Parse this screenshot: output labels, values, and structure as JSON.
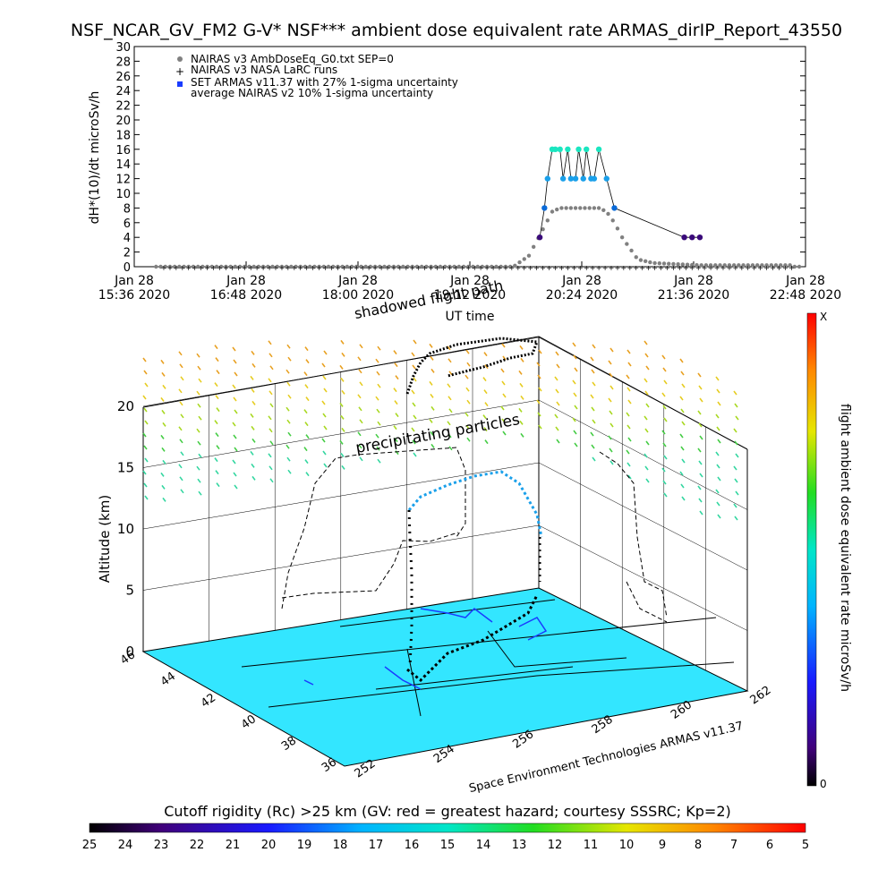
{
  "title": "NSF_NCAR_GV_FM2 G-V* NSF*** ambient dose equivalent rate ARMAS_dirIP_Report_43550",
  "colors": {
    "nairas_amb": "#808080",
    "nasa_larc": "#000000",
    "armas_low": "#3a0a7a",
    "armas_mid": "#0a6ad8",
    "armas_mid2": "#1aa0ea",
    "armas_high": "#1ae6c0",
    "map_surface": "#33e6ff",
    "coast": "#1a3cff"
  },
  "chart_data": [
    {
      "type": "scatter",
      "ylabel": "dH*(10)/dt microSv/h",
      "xlabel": "UT time",
      "ylim": [
        0,
        30
      ],
      "xlim_minutes": [
        936,
        1368
      ],
      "y_ticks": [
        "0",
        "2",
        "4",
        "6",
        "8",
        "10",
        "12",
        "14",
        "16",
        "18",
        "20",
        "22",
        "24",
        "26",
        "28",
        "30"
      ],
      "x_ticks": [
        {
          "m": 936,
          "l1": "Jan 28",
          "l2": "15:36 2020"
        },
        {
          "m": 1008,
          "l1": "Jan 28",
          "l2": "16:48 2020"
        },
        {
          "m": 1080,
          "l1": "Jan 28",
          "l2": "18:00 2020"
        },
        {
          "m": 1152,
          "l1": "Jan 28",
          "l2": "19:12 2020"
        },
        {
          "m": 1224,
          "l1": "Jan 28",
          "l2": "20:24 2020"
        },
        {
          "m": 1296,
          "l1": "Jan 28",
          "l2": "21:36 2020"
        },
        {
          "m": 1368,
          "l1": "Jan 28",
          "l2": "22:48 2020"
        }
      ],
      "legend": [
        "NAIRAS v3 AmbDoseEq_G0.txt SEP=0",
        "NAIRAS v3 NASA LaRC runs",
        "SET ARMAS v11.37 with 27% 1-sigma uncertainty",
        "average NAIRAS v2 10% 1-sigma uncertainty"
      ],
      "series": [
        {
          "name": "NAIRAS v3 AmbDoseEq_G0.txt SEP=0",
          "x": [
            950,
            1000,
            1050,
            1100,
            1150,
            1180,
            1190,
            1195,
            1200,
            1205,
            1210,
            1215,
            1220,
            1225,
            1230,
            1235,
            1240,
            1245,
            1250,
            1260,
            1270,
            1280,
            1290,
            1300,
            1310,
            1320,
            1330,
            1340,
            1350,
            1360
          ],
          "y": [
            0,
            0,
            0,
            0,
            0,
            0,
            1.5,
            3.5,
            5.5,
            7.5,
            8,
            8,
            8,
            8,
            8,
            8,
            7.5,
            6,
            4,
            1,
            0.5,
            0.4,
            0.3,
            0.2,
            0.2,
            0.2,
            0.2,
            0.2,
            0.2,
            0.2
          ]
        },
        {
          "name": "NAIRAS v3 NASA LaRC runs",
          "x": [
            950,
            1000,
            1050,
            1100,
            1150,
            1200,
            1250,
            1300,
            1350,
            1360
          ],
          "y": [
            0,
            0,
            0,
            0,
            0,
            0,
            0,
            0,
            0,
            0
          ]
        },
        {
          "name": "SET ARMAS v11.37 with 27% 1-sigma uncertainty",
          "x": [
            1197,
            1200,
            1202,
            1205,
            1207,
            1210,
            1212,
            1215,
            1217,
            1220,
            1222,
            1225,
            1227,
            1230,
            1232,
            1235,
            1240,
            1245,
            1290,
            1295,
            1300
          ],
          "y": [
            4,
            8,
            12,
            16,
            16,
            16,
            12,
            16,
            12,
            12,
            16,
            12,
            16,
            12,
            12,
            16,
            12,
            8,
            4,
            4,
            4
          ]
        }
      ]
    },
    {
      "type": "scatter",
      "title": "shadowed flight path",
      "zlabel": "Altitude (km)",
      "z_ticks": [
        "0",
        "5",
        "10",
        "15",
        "20"
      ],
      "lat_ticks": [
        "36",
        "38",
        "40",
        "42",
        "44",
        "46"
      ],
      "lon_ticks": [
        "252",
        "254",
        "256",
        "258",
        "260",
        "262"
      ],
      "annotation": "precipitating particles",
      "credit": "Space Environment Technologies ARMAS v11.37",
      "colorbar_label": "flight ambient dose equivalent rate microSv/h",
      "colorbar_top": "X",
      "colorbar_bottom": "0"
    },
    {
      "type": "heatmap",
      "title": "Cutoff rigidity (Rc) >25 km (GV: red = greatest hazard; courtesy SSSRC; Kp=2)",
      "tick_labels": [
        "25",
        "24",
        "23",
        "22",
        "21",
        "20",
        "19",
        "18",
        "17",
        "16",
        "15",
        "14",
        "13",
        "12",
        "11",
        "10",
        "9",
        "8",
        "7",
        "6",
        "5"
      ]
    }
  ]
}
